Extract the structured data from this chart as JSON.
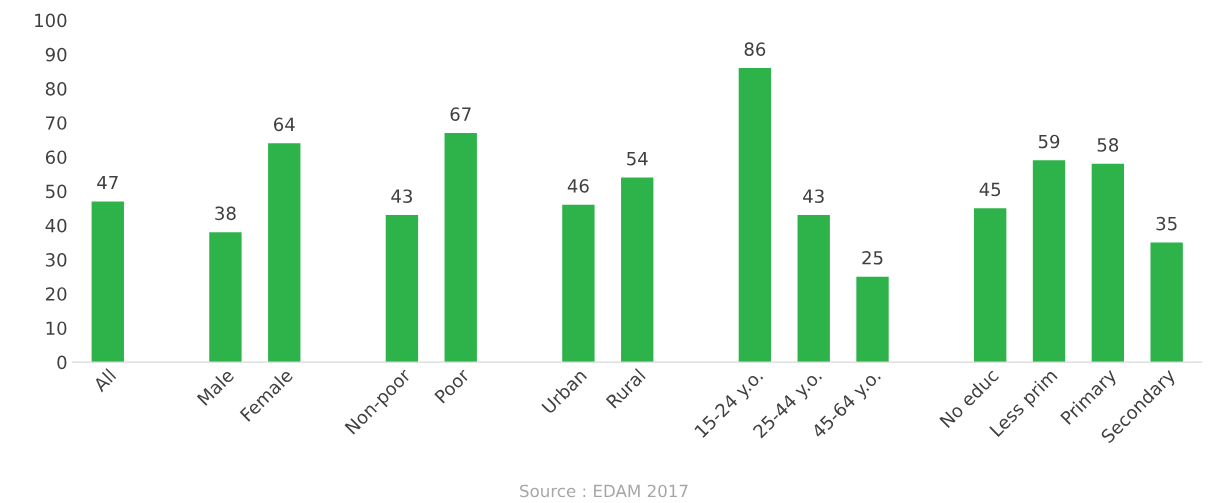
{
  "chart_data": {
    "type": "bar",
    "categories": [
      "All",
      null,
      "Male",
      "Female",
      null,
      "Non-poor",
      "Poor",
      null,
      "Urban",
      "Rural",
      null,
      "15-24 y.o.",
      "25-44 y.o.",
      "45-64 y.o.",
      null,
      "No educ",
      "Less prim",
      "Primary",
      "Secondary"
    ],
    "values": [
      47,
      null,
      38,
      64,
      null,
      43,
      67,
      null,
      46,
      54,
      null,
      86,
      43,
      25,
      null,
      45,
      59,
      58,
      35
    ],
    "color": "#2db34a",
    "ylim": [
      0,
      100
    ],
    "yticks": [
      0,
      10,
      20,
      30,
      40,
      50,
      60,
      70,
      80,
      90,
      100
    ],
    "grid": false,
    "data_labels": true,
    "annotations": [
      "Source : EDAM 2017"
    ]
  }
}
